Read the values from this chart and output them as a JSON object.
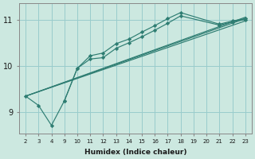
{
  "xlabel": "Humidex (Indice chaleur)",
  "bg_color": "#cce8e0",
  "grid_color": "#99cccc",
  "line_color": "#2e7d72",
  "xtick_labels": [
    "2",
    "3",
    "4",
    "9",
    "10",
    "11",
    "12",
    "13",
    "14",
    "15",
    "16",
    "17",
    "18",
    "19",
    "20",
    "21",
    "22",
    "23"
  ],
  "yticks": [
    9,
    10,
    11
  ],
  "ylim": [
    8.55,
    11.35
  ],
  "series": [
    {
      "comment": "main zigzag with markers - goes 2,3,4,9,10,11,12,13,14,15,16,17,18,21,22,23",
      "xpos": [
        0,
        1,
        2,
        3,
        4,
        5,
        6,
        7,
        8,
        9,
        10,
        11,
        12,
        15,
        16,
        17
      ],
      "y": [
        9.35,
        9.15,
        8.72,
        9.25,
        9.95,
        10.22,
        10.28,
        10.48,
        10.58,
        10.73,
        10.87,
        11.02,
        11.15,
        10.9,
        10.97,
        11.02
      ],
      "marker": true
    },
    {
      "xpos": [
        0,
        17
      ],
      "y": [
        9.35,
        10.97
      ],
      "marker": false
    },
    {
      "xpos": [
        0,
        17
      ],
      "y": [
        9.35,
        11.02
      ],
      "marker": false
    },
    {
      "xpos": [
        0,
        17
      ],
      "y": [
        9.35,
        11.05
      ],
      "marker": false
    },
    {
      "xpos": [
        3,
        4,
        5,
        6,
        7,
        8,
        9,
        10,
        11,
        12,
        15,
        16,
        17
      ],
      "y": [
        9.25,
        9.95,
        10.15,
        10.18,
        10.38,
        10.5,
        10.63,
        10.77,
        10.92,
        11.08,
        10.88,
        10.95,
        11.0
      ],
      "marker": true
    }
  ]
}
